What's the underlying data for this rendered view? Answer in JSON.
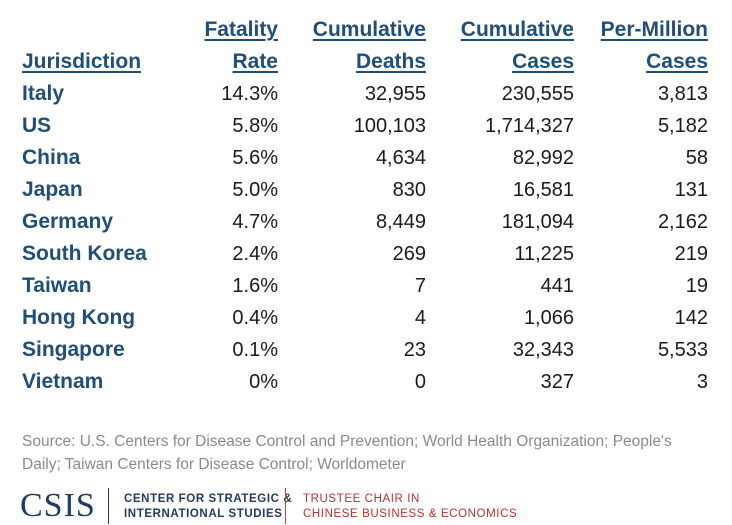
{
  "chart_data": {
    "type": "table",
    "columns": [
      {
        "key": "jurisdiction",
        "lines": [
          "",
          "Jurisdiction"
        ]
      },
      {
        "key": "fatality_rate",
        "lines": [
          "Fatality",
          "Rate"
        ]
      },
      {
        "key": "cumulative_deaths",
        "lines": [
          "Cumulative",
          "Deaths"
        ]
      },
      {
        "key": "cumulative_cases",
        "lines": [
          "Cumulative",
          "Cases"
        ]
      },
      {
        "key": "per_million_cases",
        "lines": [
          "Per-Million",
          "Cases"
        ]
      }
    ],
    "rows": [
      [
        "Italy",
        "14.3%",
        "32,955",
        "230,555",
        "3,813"
      ],
      [
        "US",
        "5.8%",
        "100,103",
        "1,714,327",
        "5,182"
      ],
      [
        "China",
        "5.6%",
        "4,634",
        "82,992",
        "58"
      ],
      [
        "Japan",
        "5.0%",
        "830",
        "16,581",
        "131"
      ],
      [
        "Germany",
        "4.7%",
        "8,449",
        "181,094",
        "2,162"
      ],
      [
        "South Korea",
        "2.4%",
        "269",
        "11,225",
        "219"
      ],
      [
        "Taiwan",
        "1.6%",
        "7",
        "441",
        "19"
      ],
      [
        "Hong Kong",
        "0.4%",
        "4",
        "1,066",
        "142"
      ],
      [
        "Singapore",
        "0.1%",
        "23",
        "32,343",
        "5,533"
      ],
      [
        "Vietnam",
        "0%",
        "0",
        "327",
        "3"
      ]
    ]
  },
  "source": "Source: U.S. Centers for Disease Control and Prevention; World Health Organization; People's Daily; Taiwan Centers for Disease Control; Worldometer",
  "footer": {
    "logo": "CSIS",
    "org_line1": "CENTER FOR STRATEGIC &",
    "org_line2": "INTERNATIONAL STUDIES",
    "chair_line1": "TRUSTEE CHAIR IN",
    "chair_line2": "CHINESE BUSINESS & ECONOMICS"
  }
}
